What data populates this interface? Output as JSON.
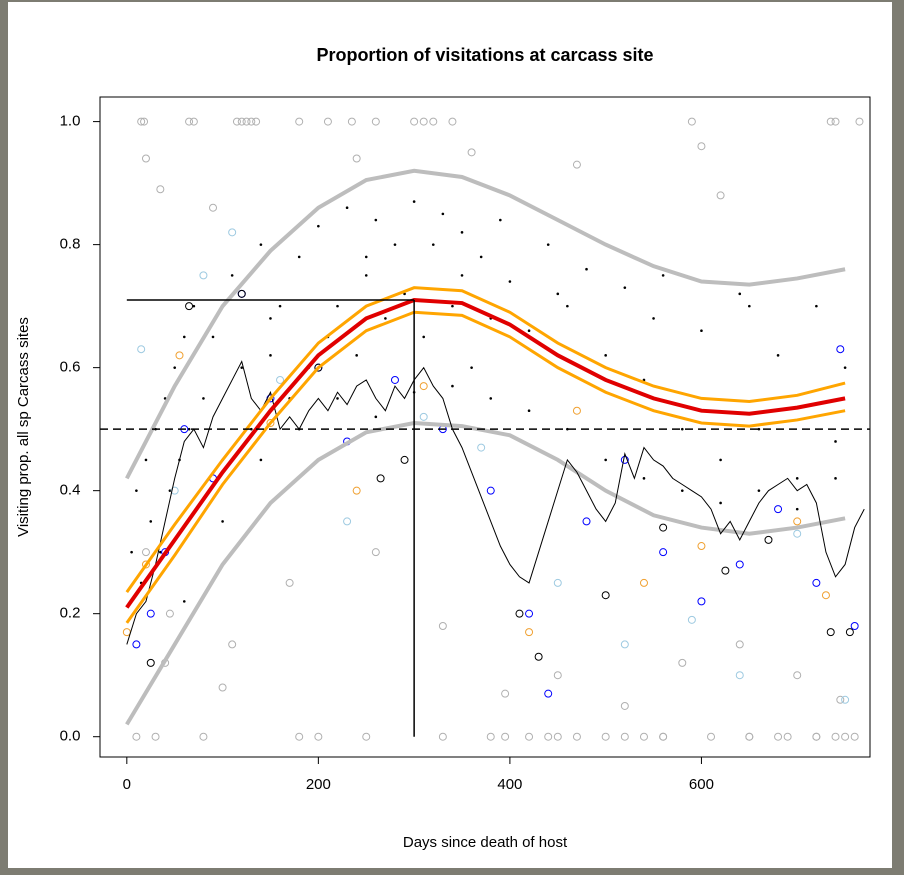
{
  "chart_data": {
    "type": "scatter",
    "title": "Proportion of visitations at carcass site",
    "x_label": "Days since death of host",
    "y_label": "Visiting prop. all sp Carcass sites",
    "xlim": [
      -28,
      776
    ],
    "ylim": [
      -0.033,
      1.04
    ],
    "xticks": [
      0,
      200,
      400,
      600
    ],
    "yticks": [
      {
        "value": 0,
        "label": "0.0"
      },
      0.2,
      0.4,
      0.6,
      0.8,
      {
        "value": 1,
        "label": "1.0"
      }
    ],
    "hline": 0.5,
    "series": [
      {
        "style": "circle",
        "color": "#b0b0b0",
        "x": [
          15,
          18,
          20,
          35,
          40,
          65,
          70,
          90,
          100,
          115,
          120,
          125,
          130,
          135,
          180,
          210,
          235,
          240,
          260,
          300,
          310,
          320,
          340,
          360,
          380,
          395,
          420,
          450,
          470,
          520,
          540,
          560,
          590,
          600,
          620,
          650,
          690,
          720,
          735,
          740,
          750,
          765,
          10,
          30,
          80,
          180,
          200,
          250,
          330,
          440,
          470,
          500,
          560,
          610,
          650,
          680,
          720,
          740,
          760,
          20,
          45,
          110,
          170,
          260,
          330,
          395,
          450,
          520,
          580,
          640,
          700,
          745
        ],
        "values": [
          1,
          1,
          0.94,
          0.89,
          0.12,
          1,
          1,
          0.86,
          0.08,
          1,
          1,
          1,
          1,
          1,
          1,
          1,
          1,
          0.94,
          1,
          1,
          1,
          1,
          1,
          0.95,
          0,
          0,
          0,
          0,
          0.93,
          0,
          0,
          0,
          1,
          0.96,
          0.88,
          0,
          0,
          0,
          1,
          1,
          0,
          1,
          0,
          0,
          0,
          0,
          0,
          0,
          0,
          0,
          0,
          0,
          0,
          0,
          0,
          0,
          0,
          0,
          0,
          0.3,
          0.2,
          0.15,
          0.25,
          0.3,
          0.18,
          0.07,
          0.1,
          0.05,
          0.12,
          0.15,
          0.1,
          0.06
        ]
      },
      {
        "style": "dot",
        "color": "#000000",
        "x": [
          5,
          10,
          15,
          20,
          25,
          30,
          35,
          40,
          45,
          50,
          55,
          60,
          65,
          70,
          80,
          90,
          100,
          110,
          120,
          130,
          140,
          150,
          160,
          170,
          180,
          190,
          200,
          210,
          220,
          230,
          240,
          250,
          260,
          270,
          280,
          290,
          300,
          310,
          320,
          330,
          340,
          350,
          360,
          370,
          380,
          390,
          400,
          420,
          440,
          460,
          480,
          500,
          520,
          540,
          560,
          580,
          600,
          620,
          640,
          660,
          680,
          700,
          720,
          740,
          750,
          60,
          100,
          140,
          180,
          220,
          260,
          300,
          340,
          380,
          420,
          460,
          500,
          540,
          580,
          620,
          660,
          700,
          740,
          150,
          250,
          350,
          450,
          550,
          650
        ],
        "values": [
          0.3,
          0.4,
          0.25,
          0.45,
          0.35,
          0.5,
          0.3,
          0.55,
          0.4,
          0.6,
          0.45,
          0.65,
          0.5,
          0.7,
          0.55,
          0.65,
          0.45,
          0.75,
          0.6,
          0.5,
          0.8,
          0.62,
          0.7,
          0.55,
          0.78,
          0.6,
          0.83,
          0.65,
          0.7,
          0.86,
          0.62,
          0.75,
          0.84,
          0.68,
          0.8,
          0.72,
          0.87,
          0.65,
          0.8,
          0.85,
          0.7,
          0.82,
          0.6,
          0.78,
          0.68,
          0.84,
          0.74,
          0.66,
          0.8,
          0.7,
          0.76,
          0.62,
          0.73,
          0.58,
          0.75,
          0.5,
          0.66,
          0.45,
          0.72,
          0.5,
          0.62,
          0.42,
          0.7,
          0.48,
          0.6,
          0.22,
          0.35,
          0.45,
          0.5,
          0.55,
          0.52,
          0.56,
          0.57,
          0.55,
          0.53,
          0.5,
          0.45,
          0.42,
          0.4,
          0.38,
          0.4,
          0.37,
          0.42,
          0.68,
          0.78,
          0.75,
          0.72,
          0.68,
          0.7
        ]
      },
      {
        "style": "circle",
        "color": "#0000ff",
        "x": [
          10,
          25,
          40,
          60,
          90,
          120,
          150,
          200,
          230,
          280,
          330,
          380,
          420,
          440,
          480,
          520,
          560,
          600,
          640,
          680,
          720,
          745,
          760
        ],
        "values": [
          0.15,
          0.2,
          0.3,
          0.5,
          0.42,
          0.72,
          0.55,
          0.6,
          0.48,
          0.58,
          0.5,
          0.4,
          0.2,
          0.07,
          0.35,
          0.45,
          0.3,
          0.22,
          0.28,
          0.37,
          0.25,
          0.63,
          0.18
        ]
      },
      {
        "style": "circle",
        "color": "#9ecae1",
        "x": [
          15,
          50,
          80,
          110,
          160,
          230,
          310,
          370,
          450,
          520,
          590,
          640,
          700,
          750
        ],
        "values": [
          0.63,
          0.4,
          0.75,
          0.82,
          0.58,
          0.35,
          0.52,
          0.47,
          0.25,
          0.15,
          0.19,
          0.1,
          0.33,
          0.06
        ]
      },
      {
        "style": "circle",
        "color": "#f0a030",
        "x": [
          0,
          20,
          55,
          150,
          240,
          310,
          420,
          470,
          540,
          600,
          700,
          730
        ],
        "values": [
          0.17,
          0.28,
          0.62,
          0.51,
          0.4,
          0.57,
          0.17,
          0.53,
          0.25,
          0.31,
          0.35,
          0.23
        ]
      },
      {
        "style": "circle",
        "color": "#000000",
        "x": [
          25,
          65,
          120,
          200,
          265,
          290,
          410,
          430,
          500,
          560,
          625,
          670,
          735,
          755
        ],
        "values": [
          0.12,
          0.7,
          0.72,
          0.6,
          0.42,
          0.45,
          0.2,
          0.13,
          0.23,
          0.34,
          0.27,
          0.32,
          0.17,
          0.17
        ]
      },
      {
        "style": "line",
        "color": "#bdbdbd",
        "width": 4,
        "x": [
          0,
          50,
          100,
          150,
          200,
          250,
          300,
          350,
          400,
          450,
          500,
          550,
          600,
          650,
          700,
          750
        ],
        "values": [
          0.42,
          0.57,
          0.7,
          0.79,
          0.86,
          0.905,
          0.92,
          0.91,
          0.88,
          0.84,
          0.8,
          0.765,
          0.74,
          0.735,
          0.745,
          0.76
        ]
      },
      {
        "style": "line",
        "color": "#bdbdbd",
        "width": 4,
        "x": [
          0,
          50,
          100,
          150,
          200,
          250,
          300,
          350,
          400,
          450,
          500,
          550,
          600,
          650,
          700,
          750
        ],
        "values": [
          0.02,
          0.15,
          0.28,
          0.38,
          0.45,
          0.495,
          0.51,
          0.505,
          0.49,
          0.45,
          0.4,
          0.36,
          0.34,
          0.33,
          0.34,
          0.355
        ]
      },
      {
        "style": "line",
        "color": "#000000",
        "width": 1,
        "x": [
          0,
          10,
          20,
          30,
          40,
          50,
          60,
          70,
          80,
          90,
          100,
          110,
          120,
          130,
          140,
          150,
          160,
          170,
          180,
          190,
          200,
          210,
          220,
          230,
          240,
          250,
          260,
          270,
          280,
          290,
          300,
          310,
          320,
          330,
          340,
          350,
          360,
          370,
          380,
          390,
          400,
          410,
          420,
          430,
          440,
          450,
          460,
          470,
          480,
          490,
          500,
          510,
          520,
          530,
          540,
          550,
          560,
          570,
          580,
          590,
          600,
          610,
          620,
          630,
          640,
          650,
          660,
          670,
          680,
          690,
          700,
          710,
          720,
          730,
          740,
          750,
          760,
          770
        ],
        "values": [
          0.15,
          0.2,
          0.22,
          0.28,
          0.35,
          0.42,
          0.48,
          0.5,
          0.47,
          0.52,
          0.55,
          0.58,
          0.61,
          0.55,
          0.53,
          0.56,
          0.5,
          0.52,
          0.5,
          0.53,
          0.55,
          0.53,
          0.56,
          0.54,
          0.57,
          0.58,
          0.55,
          0.53,
          0.57,
          0.55,
          0.58,
          0.6,
          0.57,
          0.55,
          0.5,
          0.47,
          0.43,
          0.39,
          0.35,
          0.31,
          0.28,
          0.26,
          0.25,
          0.3,
          0.35,
          0.4,
          0.45,
          0.43,
          0.4,
          0.37,
          0.35,
          0.38,
          0.46,
          0.42,
          0.47,
          0.45,
          0.44,
          0.42,
          0.41,
          0.4,
          0.39,
          0.37,
          0.33,
          0.35,
          0.32,
          0.35,
          0.38,
          0.4,
          0.41,
          0.42,
          0.4,
          0.41,
          0.38,
          0.3,
          0.26,
          0.28,
          0.34,
          0.37
        ]
      },
      {
        "style": "line",
        "color": "#ffa500",
        "width": 3,
        "x": [
          0,
          50,
          100,
          150,
          200,
          250,
          300,
          350,
          400,
          450,
          500,
          550,
          600,
          650,
          700,
          750
        ],
        "values": [
          0.235,
          0.345,
          0.45,
          0.55,
          0.64,
          0.7,
          0.73,
          0.725,
          0.69,
          0.64,
          0.6,
          0.57,
          0.55,
          0.545,
          0.555,
          0.575
        ]
      },
      {
        "style": "line",
        "color": "#ffa500",
        "width": 3,
        "x": [
          0,
          50,
          100,
          150,
          200,
          250,
          300,
          350,
          400,
          450,
          500,
          550,
          600,
          650,
          700,
          750
        ],
        "values": [
          0.185,
          0.295,
          0.41,
          0.51,
          0.6,
          0.66,
          0.69,
          0.685,
          0.65,
          0.6,
          0.56,
          0.53,
          0.51,
          0.505,
          0.515,
          0.53
        ]
      },
      {
        "style": "line",
        "color": "#e00000",
        "width": 4,
        "x": [
          0,
          50,
          100,
          150,
          200,
          250,
          300,
          350,
          400,
          450,
          500,
          550,
          600,
          650,
          700,
          750
        ],
        "values": [
          0.21,
          0.32,
          0.43,
          0.53,
          0.62,
          0.68,
          0.71,
          0.705,
          0.67,
          0.62,
          0.58,
          0.55,
          0.53,
          0.525,
          0.535,
          0.55
        ]
      },
      {
        "style": "line",
        "color": "#000000",
        "width": 1.5,
        "x": [
          0,
          300
        ],
        "values": [
          0.71,
          0.71
        ]
      },
      {
        "style": "line",
        "color": "#000000",
        "width": 1.5,
        "x": [
          300,
          300
        ],
        "values": [
          0,
          0.71
        ]
      }
    ]
  }
}
